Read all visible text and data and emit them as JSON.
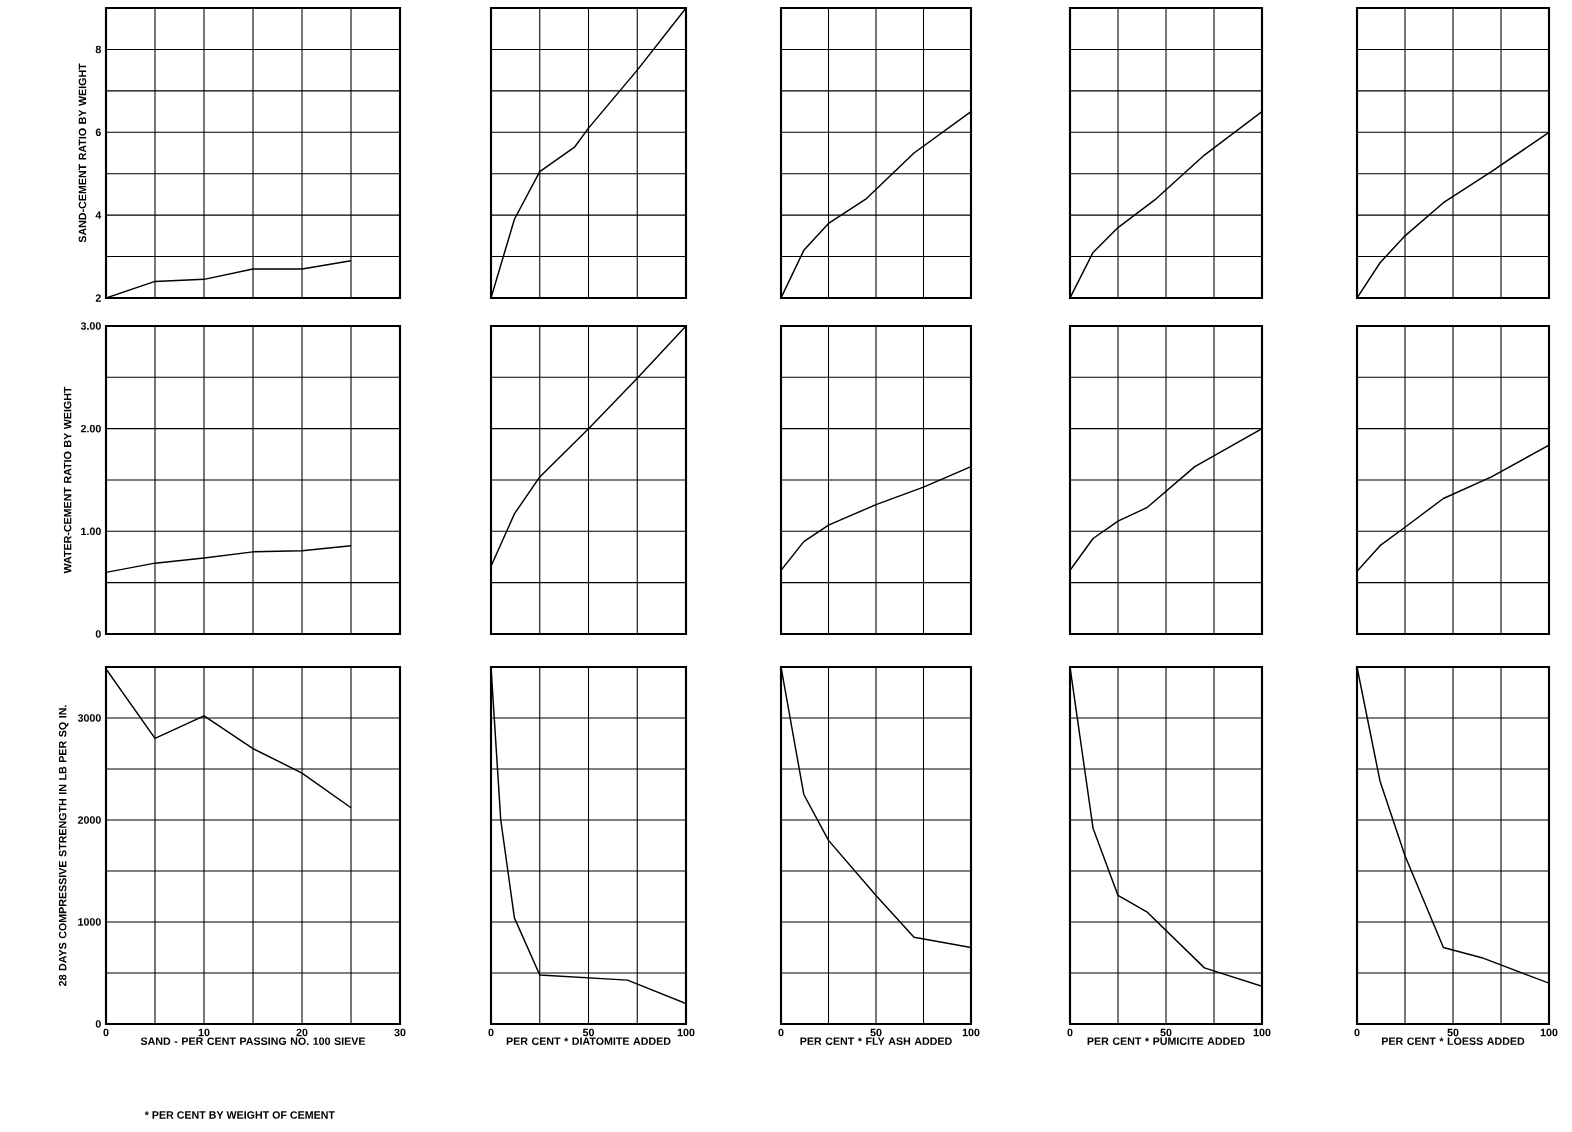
{
  "chart_data": [
    {
      "type": "line",
      "ylabel": "SAND-CEMENT RATIO BY WEIGHT",
      "x": [
        0,
        5,
        10,
        15,
        20,
        25
      ],
      "values": [
        2.0,
        2.4,
        2.45,
        2.7,
        2.7,
        2.9
      ],
      "color": "#000000",
      "xlim": [
        0,
        30
      ],
      "xticks": [
        0,
        5,
        10,
        15,
        20,
        25,
        30
      ],
      "ylim": [
        2,
        9
      ],
      "yticks": [
        2,
        {
          "value": 3,
          "label": null
        },
        4,
        {
          "value": 5,
          "label": null
        },
        6,
        {
          "value": 7,
          "label": null
        },
        8
      ],
      "grid": true,
      "tick_labels": "y"
    },
    {
      "type": "line",
      "x": [
        0,
        12,
        25,
        43,
        50,
        75,
        100
      ],
      "values": [
        2.0,
        3.9,
        5.05,
        5.65,
        6.1,
        7.5,
        9.0
      ],
      "color": "#000000",
      "xlim": [
        0,
        100
      ],
      "xticks": [
        0,
        25,
        50,
        75,
        100
      ],
      "ylim": [
        2,
        9
      ],
      "yticks": [
        2,
        3,
        4,
        5,
        6,
        7,
        8
      ],
      "grid": true,
      "tick_labels": false
    },
    {
      "type": "line",
      "x": [
        0,
        12,
        25,
        45,
        70,
        100
      ],
      "values": [
        2.0,
        3.15,
        3.8,
        4.4,
        5.5,
        6.5
      ],
      "color": "#000000",
      "xlim": [
        0,
        100
      ],
      "xticks": [
        0,
        25,
        50,
        75,
        100
      ],
      "ylim": [
        2,
        9
      ],
      "yticks": [
        2,
        3,
        4,
        5,
        6,
        7,
        8
      ],
      "grid": true,
      "tick_labels": false
    },
    {
      "type": "line",
      "x": [
        0,
        12,
        25,
        45,
        70,
        100
      ],
      "values": [
        2.0,
        3.1,
        3.7,
        4.4,
        5.45,
        6.5
      ],
      "color": "#000000",
      "xlim": [
        0,
        100
      ],
      "xticks": [
        0,
        25,
        50,
        75,
        100
      ],
      "ylim": [
        2,
        9
      ],
      "yticks": [
        2,
        3,
        4,
        5,
        6,
        7,
        8
      ],
      "grid": true,
      "tick_labels": false
    },
    {
      "type": "line",
      "x": [
        0,
        12,
        25,
        45,
        70,
        100
      ],
      "values": [
        2.0,
        2.85,
        3.5,
        4.3,
        5.05,
        6.0
      ],
      "color": "#000000",
      "xlim": [
        0,
        100
      ],
      "xticks": [
        0,
        25,
        50,
        75,
        100
      ],
      "ylim": [
        2,
        9
      ],
      "yticks": [
        2,
        3,
        4,
        5,
        6,
        7,
        8
      ],
      "grid": true,
      "tick_labels": false
    },
    {
      "type": "line",
      "ylabel": "WATER-CEMENT RATIO BY WEIGHT",
      "x": [
        0,
        5,
        10,
        15,
        20,
        25
      ],
      "values": [
        0.6,
        0.69,
        0.74,
        0.8,
        0.81,
        0.86
      ],
      "color": "#000000",
      "xlim": [
        0,
        30
      ],
      "xticks": [
        0,
        5,
        10,
        15,
        20,
        25,
        30
      ],
      "ylim": [
        0,
        3
      ],
      "yticks": [
        0,
        {
          "value": 0.5,
          "label": null
        },
        {
          "value": 1,
          "label": "1.00"
        },
        {
          "value": 1.5,
          "label": null
        },
        {
          "value": 2,
          "label": "2.00"
        },
        {
          "value": 2.5,
          "label": null
        },
        {
          "value": 3,
          "label": "3.00"
        }
      ],
      "grid": true,
      "tick_labels": "y"
    },
    {
      "type": "line",
      "x": [
        0,
        12,
        25,
        50,
        75,
        100
      ],
      "values": [
        0.66,
        1.17,
        1.53,
        2.0,
        2.49,
        3.0
      ],
      "color": "#000000",
      "xlim": [
        0,
        100
      ],
      "xticks": [
        0,
        25,
        50,
        75,
        100
      ],
      "ylim": [
        0,
        3
      ],
      "yticks": [
        0,
        0.5,
        1,
        1.5,
        2,
        2.5,
        3
      ],
      "grid": true,
      "tick_labels": false
    },
    {
      "type": "line",
      "x": [
        0,
        12,
        25,
        50,
        75,
        100
      ],
      "values": [
        0.62,
        0.9,
        1.06,
        1.26,
        1.43,
        1.63
      ],
      "color": "#000000",
      "xlim": [
        0,
        100
      ],
      "xticks": [
        0,
        25,
        50,
        75,
        100
      ],
      "ylim": [
        0,
        3
      ],
      "yticks": [
        0,
        0.5,
        1,
        1.5,
        2,
        2.5,
        3
      ],
      "grid": true,
      "tick_labels": false
    },
    {
      "type": "line",
      "x": [
        0,
        12,
        25,
        40,
        65,
        100
      ],
      "values": [
        0.62,
        0.93,
        1.1,
        1.23,
        1.63,
        2.0
      ],
      "color": "#000000",
      "xlim": [
        0,
        100
      ],
      "xticks": [
        0,
        25,
        50,
        75,
        100
      ],
      "ylim": [
        0,
        3
      ],
      "yticks": [
        0,
        0.5,
        1,
        1.5,
        2,
        2.5,
        3
      ],
      "grid": true,
      "tick_labels": false
    },
    {
      "type": "line",
      "x": [
        0,
        12,
        25,
        45,
        70,
        100
      ],
      "values": [
        0.61,
        0.86,
        1.04,
        1.32,
        1.53,
        1.84
      ],
      "color": "#000000",
      "xlim": [
        0,
        100
      ],
      "xticks": [
        0,
        25,
        50,
        75,
        100
      ],
      "ylim": [
        0,
        3
      ],
      "yticks": [
        0,
        0.5,
        1,
        1.5,
        2,
        2.5,
        3
      ],
      "grid": true,
      "tick_labels": false
    },
    {
      "type": "line",
      "xlabel": "SAND - PER CENT PASSING NO. 100 SIEVE",
      "ylabel": "28 DAYS COMPRESSIVE STRENGTH IN LB PER SQ IN.",
      "annotations": [
        "* PER CENT BY WEIGHT OF CEMENT"
      ],
      "x": [
        0,
        5,
        10,
        15,
        20,
        25
      ],
      "values": [
        3480,
        2800,
        3020,
        2700,
        2460,
        2120
      ],
      "color": "#000000",
      "xlim": [
        0,
        30
      ],
      "xticks": [
        0,
        {
          "value": 5,
          "label": null
        },
        10,
        {
          "value": 15,
          "label": null
        },
        20,
        {
          "value": 25,
          "label": null
        },
        30
      ],
      "ylim": [
        0,
        3500
      ],
      "yticks": [
        0,
        {
          "value": 500,
          "label": null
        },
        1000,
        {
          "value": 1500,
          "label": null
        },
        2000,
        {
          "value": 2500,
          "label": null
        },
        3000
      ],
      "grid": true
    },
    {
      "type": "line",
      "xlabel": "PER CENT * DIATOMITE ADDED",
      "x": [
        0,
        5,
        12,
        25,
        70,
        100
      ],
      "values": [
        3500,
        2000,
        1040,
        480,
        430,
        200
      ],
      "color": "#000000",
      "xlim": [
        0,
        100
      ],
      "xticks": [
        0,
        {
          "value": 25,
          "label": null
        },
        50,
        {
          "value": 75,
          "label": null
        },
        100
      ],
      "ylim": [
        0,
        3500
      ],
      "yticks": [
        0,
        500,
        1000,
        1500,
        2000,
        2500,
        3000
      ],
      "grid": true,
      "tick_labels": "x"
    },
    {
      "type": "line",
      "xlabel": "PER CENT * FLY ASH ADDED",
      "x": [
        0,
        12,
        25,
        50,
        70,
        100
      ],
      "values": [
        3500,
        2250,
        1800,
        1260,
        850,
        750
      ],
      "color": "#000000",
      "xlim": [
        0,
        100
      ],
      "xticks": [
        0,
        {
          "value": 25,
          "label": null
        },
        50,
        {
          "value": 75,
          "label": null
        },
        100
      ],
      "ylim": [
        0,
        3500
      ],
      "yticks": [
        0,
        500,
        1000,
        1500,
        2000,
        2500,
        3000
      ],
      "grid": true,
      "tick_labels": "x"
    },
    {
      "type": "line",
      "xlabel": "PER CENT * PUMICITE ADDED",
      "x": [
        0,
        12,
        25,
        40,
        70,
        100
      ],
      "values": [
        3500,
        1920,
        1260,
        1100,
        550,
        370
      ],
      "color": "#000000",
      "xlim": [
        0,
        100
      ],
      "xticks": [
        0,
        {
          "value": 25,
          "label": null
        },
        50,
        {
          "value": 75,
          "label": null
        },
        100
      ],
      "ylim": [
        0,
        3500
      ],
      "yticks": [
        0,
        500,
        1000,
        1500,
        2000,
        2500,
        3000
      ],
      "grid": true,
      "tick_labels": "x"
    },
    {
      "type": "line",
      "xlabel": "PER CENT * LOESS ADDED",
      "x": [
        0,
        12,
        25,
        45,
        65,
        100
      ],
      "values": [
        3500,
        2380,
        1650,
        750,
        650,
        400
      ],
      "color": "#000000",
      "xlim": [
        0,
        100
      ],
      "xticks": [
        0,
        {
          "value": 25,
          "label": null
        },
        50,
        {
          "value": 75,
          "label": null
        },
        100
      ],
      "ylim": [
        0,
        3500
      ],
      "yticks": [
        0,
        500,
        1000,
        1500,
        2000,
        2500,
        3000
      ],
      "grid": true,
      "tick_labels": "x"
    }
  ]
}
